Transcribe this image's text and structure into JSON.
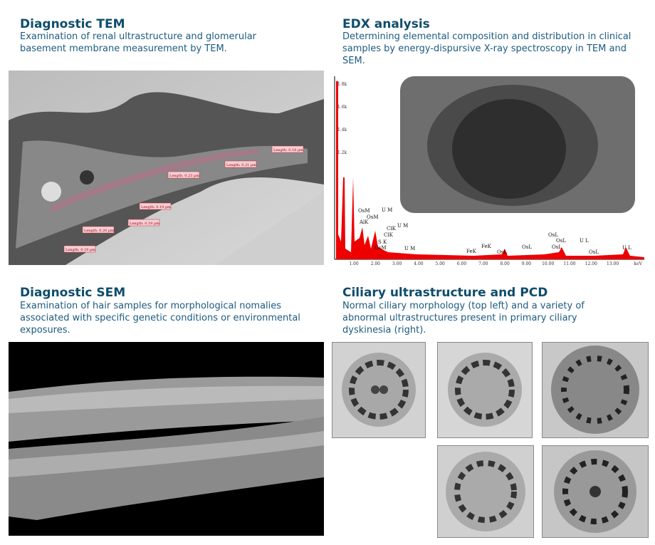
{
  "sections": [
    {
      "title": "Diagnostic TEM",
      "description": "Examination of renal ultrastructure and glomerular basement membrane measurement by TEM.",
      "image_labels": [
        "Length: 0.18 µm",
        "Length: 0.21 µm",
        "Length: 0.23 µm",
        "Length: 0.19 µm",
        "Length: 0.19 µm",
        "Length: 0.20 µm",
        "Length: 0.19 µm"
      ]
    },
    {
      "title": "EDX analysis",
      "description": "Determining elemental composition and distribution in clinical samples by energy-dispursive X-ray spectroscopy in TEM and SEM.",
      "spectrum": {
        "y_ticks": [
          "1.8k",
          "1.6k",
          "1.4k",
          "1.2k"
        ],
        "x_ticks": [
          "1.00",
          "2.00",
          "3.00",
          "4.00",
          "5.00",
          "6.00",
          "7.00",
          "8.00",
          "9.00",
          "10.00",
          "11.00",
          "12.00",
          "13.00"
        ],
        "x_unit": "keV",
        "peak_labels": [
          "OsM",
          "OsM",
          "U M",
          "AlK",
          "ClK",
          "ClK",
          "S K",
          "OsM",
          "U M",
          "U M",
          "FeK",
          "FeK",
          "OsL",
          "OsL",
          "OsL",
          "OsL",
          "U L",
          "OsL",
          "OsL",
          "U L"
        ]
      }
    },
    {
      "title": "Diagnostic SEM",
      "description": "Examination of hair samples for morphological nomalies associated with specific genetic conditions or environmental exposures."
    },
    {
      "title": "Ciliary ultrastructure and PCD",
      "description": "Normal ciliary morphology (top left) and a variety of abnormal ultrastructures present in primary ciliary dyskinesia (right)."
    }
  ]
}
